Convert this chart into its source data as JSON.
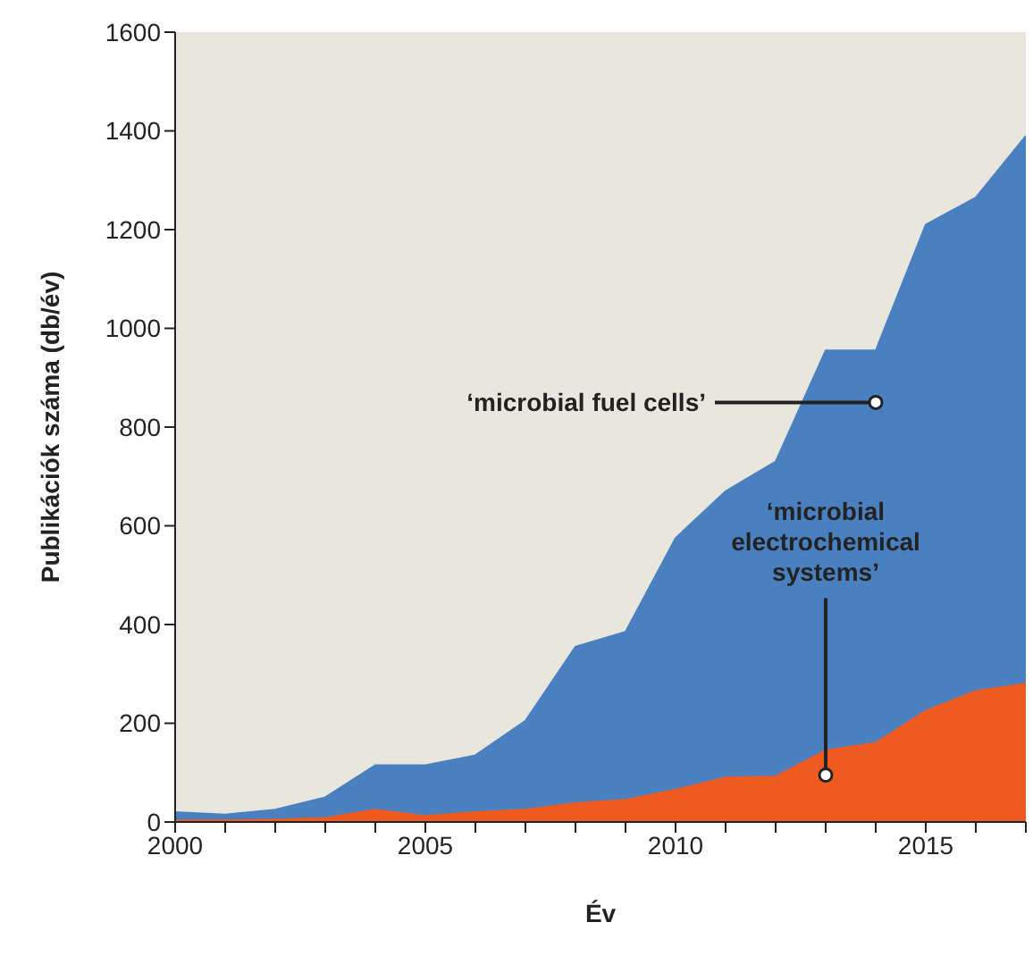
{
  "chart_data": {
    "type": "area",
    "xlabel": "Év",
    "ylabel": "Publikációk száma (db/év)",
    "x": [
      2000,
      2001,
      2002,
      2003,
      2004,
      2005,
      2006,
      2007,
      2008,
      2009,
      2010,
      2011,
      2012,
      2013,
      2014,
      2015,
      2016,
      2017
    ],
    "series": [
      {
        "color": "#4a80c0",
        "values": [
          20,
          15,
          25,
          50,
          115,
          115,
          135,
          205,
          355,
          385,
          575,
          670,
          730,
          955,
          955,
          1210,
          1265,
          1390
        ]
      },
      {
        "color": "#ee5a20",
        "values": [
          3,
          3,
          5,
          8,
          25,
          12,
          20,
          25,
          38,
          45,
          65,
          90,
          92,
          145,
          160,
          225,
          265,
          280
        ]
      }
    ],
    "xlim": [
      2000,
      2017
    ],
    "xticks": [
      2000,
      {
        "value": 2001,
        "label": null
      },
      {
        "value": 2002,
        "label": null
      },
      {
        "value": 2003,
        "label": null
      },
      {
        "value": 2004,
        "label": null
      },
      2005,
      {
        "value": 2006,
        "label": null
      },
      {
        "value": 2007,
        "label": null
      },
      {
        "value": 2008,
        "label": null
      },
      {
        "value": 2009,
        "label": null
      },
      2010,
      {
        "value": 2011,
        "label": null
      },
      {
        "value": 2012,
        "label": null
      },
      {
        "value": 2013,
        "label": null
      },
      {
        "value": 2014,
        "label": null
      },
      2015,
      {
        "value": 2016,
        "label": null
      },
      {
        "value": 2017,
        "label": null
      }
    ],
    "ylim": [
      0,
      1600
    ],
    "yticks": [
      0,
      200,
      400,
      600,
      800,
      1000,
      1200,
      1400,
      1600
    ],
    "annotations": [
      {
        "text": "‘microbial fuel cells’",
        "x": 2014,
        "y": 850
      },
      {
        "text": "‘microbial electrochemical systems’",
        "x": 2013,
        "y": 95
      }
    ],
    "grid": false,
    "legend": false
  }
}
